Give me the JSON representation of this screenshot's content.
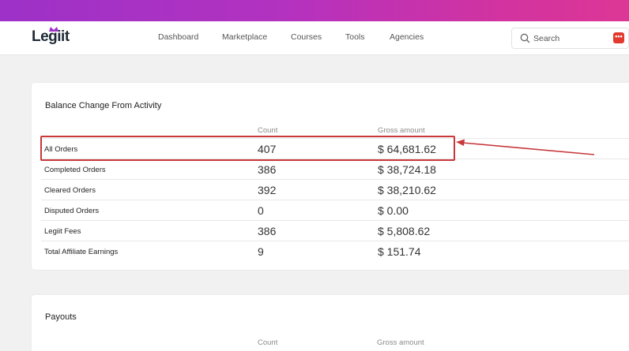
{
  "brand": {
    "name": "Legiit"
  },
  "nav": {
    "items": [
      {
        "label": "Dashboard"
      },
      {
        "label": "Marketplace"
      },
      {
        "label": "Courses"
      },
      {
        "label": "Tools"
      },
      {
        "label": "Agencies"
      }
    ]
  },
  "search": {
    "label": "Search",
    "badge": "•••"
  },
  "balance": {
    "title": "Balance Change From Activity",
    "col_count": "Count",
    "col_amount": "Gross amount",
    "rows": [
      {
        "label": "All Orders",
        "count": "407",
        "amount": "$ 64,681.62"
      },
      {
        "label": "Completed Orders",
        "count": "386",
        "amount": "$ 38,724.18"
      },
      {
        "label": "Cleared Orders",
        "count": "392",
        "amount": "$ 38,210.62"
      },
      {
        "label": "Disputed Orders",
        "count": "0",
        "amount": "$ 0.00"
      },
      {
        "label": "Legiit Fees",
        "count": "386",
        "amount": "$ 5,808.62"
      },
      {
        "label": "Total Affiliate Earnings",
        "count": "9",
        "amount": "$ 151.74"
      }
    ]
  },
  "payouts": {
    "title": "Payouts",
    "col_count": "Count",
    "col_amount": "Gross amount"
  },
  "colors": {
    "gradient_start": "#9d31c8",
    "gradient_end": "#dd3696",
    "annotation": "#c8373b"
  }
}
